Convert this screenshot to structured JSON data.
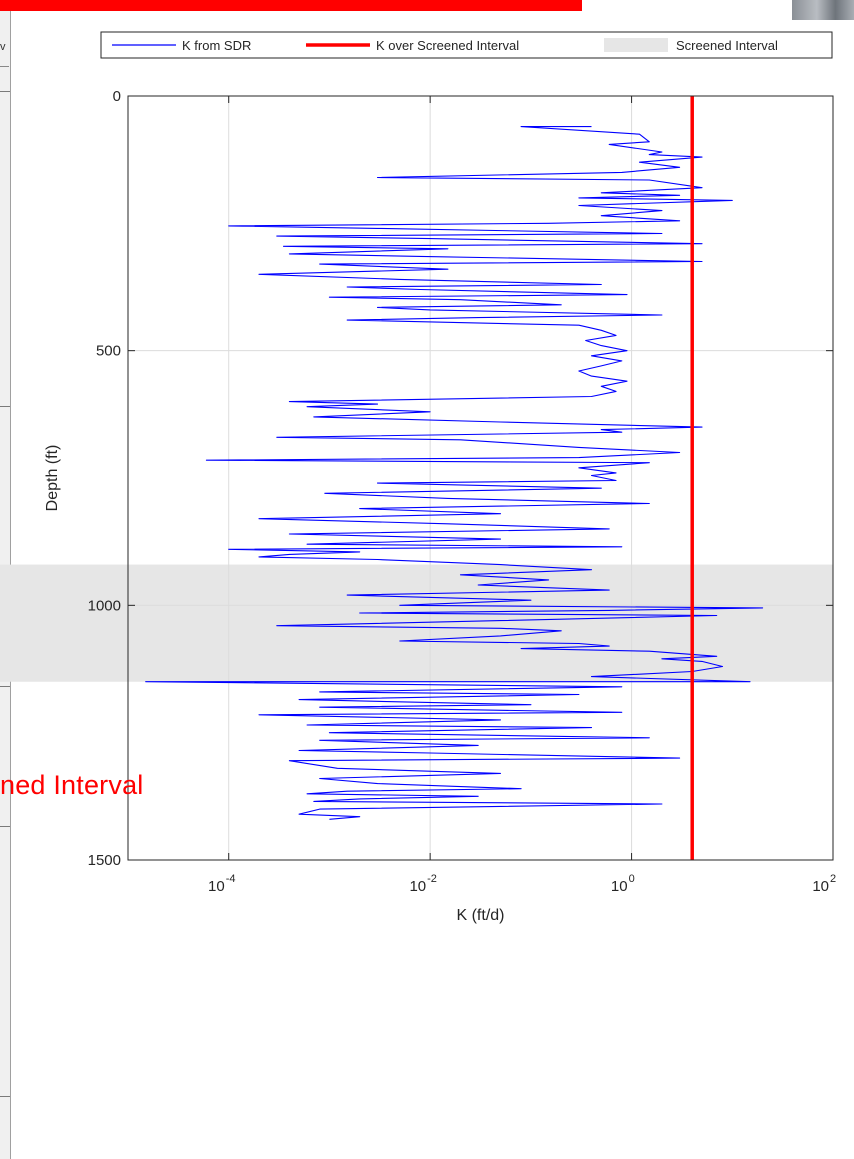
{
  "overlay": {
    "label_text": "ned Interval",
    "label_color": "#ff0000",
    "left_strip_text": "v",
    "banner_color": "#ff0000"
  },
  "chart_data": {
    "type": "line",
    "xlabel": "K (ft/d)",
    "ylabel": "Depth (ft)",
    "x_scale": "log",
    "xlim": [
      1e-05,
      100
    ],
    "ylim": [
      0,
      1500
    ],
    "y_reversed": true,
    "x_ticks": [
      {
        "value": 0.0001,
        "base": "10",
        "exp": "-4"
      },
      {
        "value": 0.01,
        "base": "10",
        "exp": "-2"
      },
      {
        "value": 1,
        "base": "10",
        "exp": "0"
      },
      {
        "value": 100,
        "base": "10",
        "exp": "2"
      }
    ],
    "y_ticks": [
      0,
      500,
      1000,
      1500
    ],
    "grid": true,
    "legend": {
      "placement": "top",
      "entries": [
        {
          "label": "K from SDR",
          "color": "#0000ff",
          "kind": "line"
        },
        {
          "label": "K over Screened Interval",
          "color": "#ff0000",
          "kind": "thick-line"
        },
        {
          "label": "Screened Interval",
          "color": "#e6e6e6",
          "kind": "patch"
        }
      ]
    },
    "screened_interval": {
      "top": 920,
      "bottom": 1150,
      "color": "#e6e6e6"
    },
    "k_over_screened_interval": {
      "value": 4,
      "depth_range": [
        0,
        1500
      ],
      "color": "#ff0000"
    },
    "series": [
      {
        "name": "K from SDR",
        "color": "#0000ff",
        "points": [
          [
            60,
            0.4
          ],
          [
            60,
            0.08
          ],
          [
            75,
            1.2
          ],
          [
            90,
            1.5
          ],
          [
            95,
            0.6
          ],
          [
            110,
            2
          ],
          [
            115,
            1.5
          ],
          [
            120,
            5
          ],
          [
            130,
            1.2
          ],
          [
            140,
            3
          ],
          [
            150,
            0.8
          ],
          [
            160,
            0.003
          ],
          [
            165,
            1.5
          ],
          [
            180,
            5
          ],
          [
            190,
            0.5
          ],
          [
            195,
            3
          ],
          [
            200,
            0.3
          ],
          [
            205,
            10
          ],
          [
            215,
            0.3
          ],
          [
            225,
            2
          ],
          [
            235,
            0.5
          ],
          [
            245,
            3
          ],
          [
            250,
            0.15
          ],
          [
            255,
            0.0001
          ],
          [
            260,
            0.003
          ],
          [
            270,
            2
          ],
          [
            275,
            0.0003
          ],
          [
            280,
            0.01
          ],
          [
            290,
            5
          ],
          [
            295,
            0.00035
          ],
          [
            300,
            0.015
          ],
          [
            310,
            0.0004
          ],
          [
            315,
            0.008
          ],
          [
            325,
            5
          ],
          [
            330,
            0.0008
          ],
          [
            340,
            0.015
          ],
          [
            350,
            0.0002
          ],
          [
            360,
            0.005
          ],
          [
            370,
            0.5
          ],
          [
            375,
            0.0015
          ],
          [
            380,
            0.008
          ],
          [
            390,
            0.9
          ],
          [
            395,
            0.001
          ],
          [
            400,
            0.02
          ],
          [
            410,
            0.2
          ],
          [
            415,
            0.003
          ],
          [
            420,
            0.01
          ],
          [
            430,
            2
          ],
          [
            435,
            0.03
          ],
          [
            440,
            0.0015
          ],
          [
            450,
            0.3
          ],
          [
            460,
            0.5
          ],
          [
            470,
            0.7
          ],
          [
            480,
            0.35
          ],
          [
            490,
            0.5
          ],
          [
            500,
            0.9
          ],
          [
            510,
            0.4
          ],
          [
            520,
            0.8
          ],
          [
            530,
            0.5
          ],
          [
            540,
            0.3
          ],
          [
            550,
            0.4
          ],
          [
            560,
            0.9
          ],
          [
            570,
            0.5
          ],
          [
            580,
            0.7
          ],
          [
            590,
            0.4
          ],
          [
            600,
            0.0004
          ],
          [
            605,
            0.003
          ],
          [
            610,
            0.0006
          ],
          [
            620,
            0.01
          ],
          [
            630,
            0.0007
          ],
          [
            640,
            0.05
          ],
          [
            650,
            5
          ],
          [
            655,
            0.5
          ],
          [
            660,
            0.8
          ],
          [
            670,
            0.0003
          ],
          [
            675,
            0.02
          ],
          [
            690,
            0.3
          ],
          [
            700,
            3
          ],
          [
            710,
            0.3
          ],
          [
            715,
            6e-05
          ],
          [
            720,
            1.5
          ],
          [
            730,
            0.3
          ],
          [
            740,
            0.7
          ],
          [
            745,
            0.4
          ],
          [
            755,
            0.7
          ],
          [
            760,
            0.003
          ],
          [
            770,
            0.5
          ],
          [
            780,
            0.0009
          ],
          [
            790,
            0.015
          ],
          [
            800,
            1.5
          ],
          [
            810,
            0.002
          ],
          [
            820,
            0.05
          ],
          [
            830,
            0.0002
          ],
          [
            840,
            0.015
          ],
          [
            850,
            0.6
          ],
          [
            860,
            0.0004
          ],
          [
            870,
            0.05
          ],
          [
            880,
            0.0006
          ],
          [
            885,
            0.8
          ],
          [
            890,
            0.0001
          ],
          [
            895,
            0.002
          ],
          [
            900,
            0.0004
          ],
          [
            905,
            0.0002
          ],
          [
            910,
            0.003
          ],
          [
            920,
            0.05
          ],
          [
            930,
            0.4
          ],
          [
            940,
            0.02
          ],
          [
            950,
            0.15
          ],
          [
            960,
            0.03
          ],
          [
            970,
            0.6
          ],
          [
            980,
            0.0015
          ],
          [
            990,
            0.1
          ],
          [
            1000,
            0.005
          ],
          [
            1005,
            20
          ],
          [
            1010,
            0.6
          ],
          [
            1015,
            0.002
          ],
          [
            1020,
            7
          ],
          [
            1030,
            0.05
          ],
          [
            1040,
            0.0003
          ],
          [
            1045,
            0.05
          ],
          [
            1050,
            0.2
          ],
          [
            1060,
            0.05
          ],
          [
            1070,
            0.005
          ],
          [
            1075,
            0.3
          ],
          [
            1080,
            0.6
          ],
          [
            1085,
            0.08
          ],
          [
            1090,
            1.5
          ],
          [
            1100,
            7
          ],
          [
            1105,
            2
          ],
          [
            1110,
            5
          ],
          [
            1120,
            8
          ],
          [
            1130,
            4
          ],
          [
            1140,
            0.4
          ],
          [
            1150,
            15
          ],
          [
            1150,
            1.5e-05
          ],
          [
            1160,
            0.8
          ],
          [
            1170,
            0.0008
          ],
          [
            1175,
            0.3
          ],
          [
            1185,
            0.0005
          ],
          [
            1195,
            0.1
          ],
          [
            1200,
            0.0008
          ],
          [
            1210,
            0.8
          ],
          [
            1215,
            0.0002
          ],
          [
            1225,
            0.05
          ],
          [
            1235,
            0.0006
          ],
          [
            1240,
            0.4
          ],
          [
            1250,
            0.001
          ],
          [
            1260,
            1.5
          ],
          [
            1265,
            0.0008
          ],
          [
            1275,
            0.03
          ],
          [
            1285,
            0.0005
          ],
          [
            1290,
            0.01
          ],
          [
            1300,
            3
          ],
          [
            1305,
            0.0004
          ],
          [
            1320,
            0.0012
          ],
          [
            1330,
            0.05
          ],
          [
            1340,
            0.0008
          ],
          [
            1350,
            0.003
          ],
          [
            1360,
            0.08
          ],
          [
            1365,
            0.0015
          ],
          [
            1370,
            0.0006
          ],
          [
            1375,
            0.03
          ],
          [
            1380,
            0.002
          ],
          [
            1385,
            0.0007
          ],
          [
            1390,
            2
          ],
          [
            1400,
            0.0008
          ],
          [
            1410,
            0.0005
          ],
          [
            1415,
            0.002
          ],
          [
            1420,
            0.001
          ]
        ]
      }
    ]
  }
}
